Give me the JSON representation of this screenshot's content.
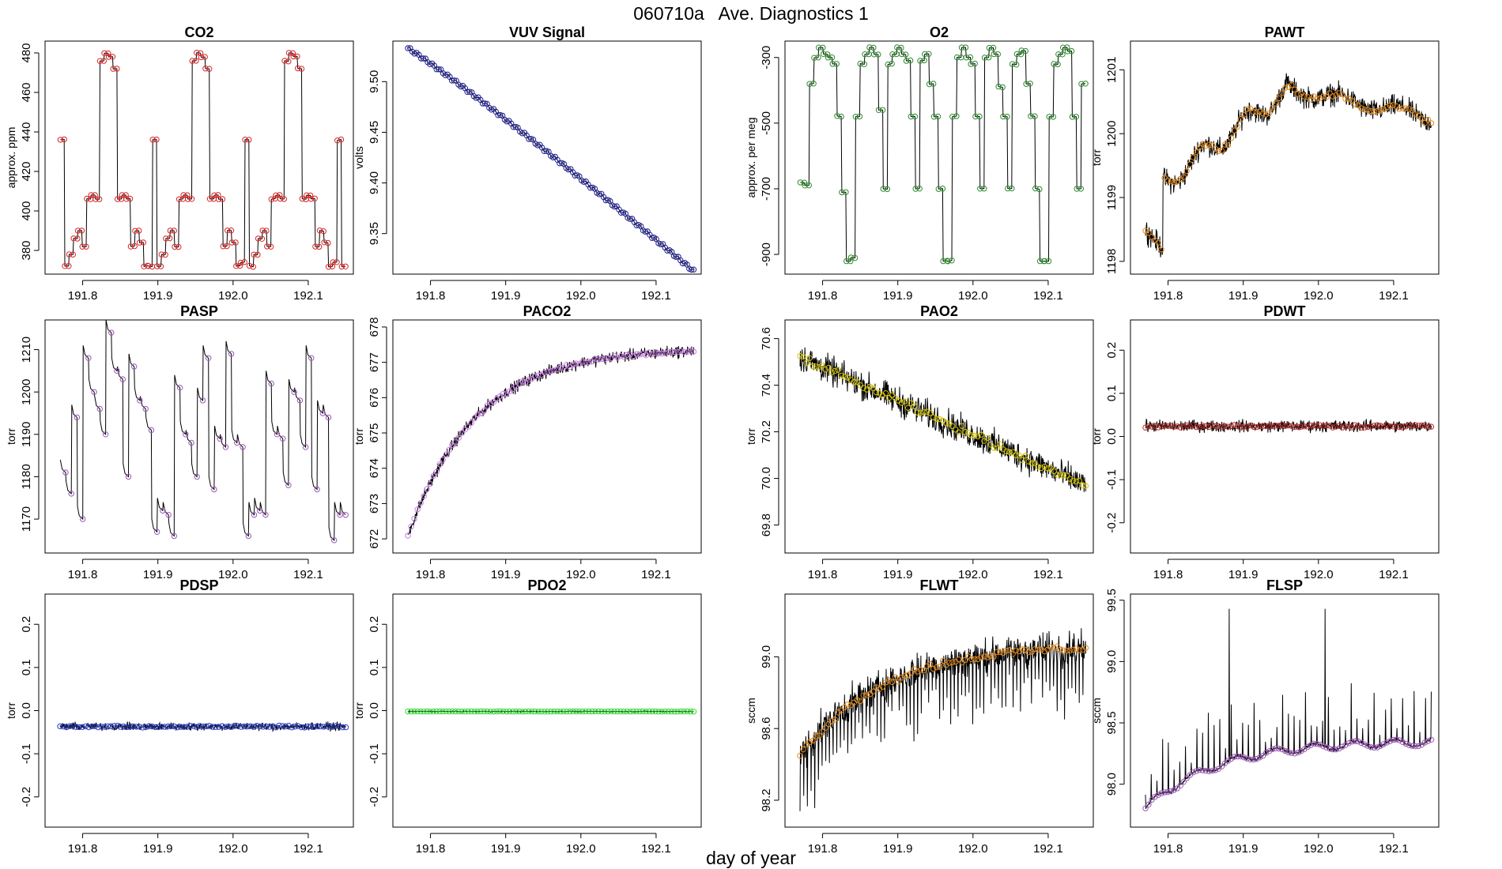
{
  "title": "060710a   Ave. Diagnostics 1",
  "xlabel": "day of year",
  "colors": {
    "axis": "#000000",
    "line": "#000000",
    "red": "#d62728",
    "navy": "#1f1f8f",
    "green": "#2e8b2e",
    "orange": "#e08a1e",
    "purple": "#9b59b6",
    "violet": "#c77ee0",
    "yellow": "#d4c400",
    "darkred": "#b03030",
    "blue": "#3040c0",
    "lime": "#33dd33"
  },
  "chart_data": [
    {
      "type": "line",
      "title": "CO2",
      "ylabel": "approx. ppm",
      "xlim": [
        191.75,
        192.16
      ],
      "ylim": [
        368,
        486
      ],
      "xticks": [
        191.8,
        191.9,
        192.0,
        192.1
      ],
      "xtick_labels": [
        "191.8",
        "191.9",
        "192.0",
        "192.1"
      ],
      "yticks": [
        380,
        400,
        420,
        440,
        460,
        480
      ],
      "ytick_labels": [
        "380",
        "400",
        "420",
        "440",
        "460",
        "480"
      ],
      "marker_color": "red",
      "pattern": "co2"
    },
    {
      "type": "line",
      "title": "VUV Signal",
      "ylabel": "volts",
      "xlim": [
        191.75,
        192.16
      ],
      "ylim": [
        9.31,
        9.54
      ],
      "xticks": [
        191.8,
        191.9,
        192.0,
        192.1
      ],
      "xtick_labels": [
        "191.8",
        "191.9",
        "192.0",
        "192.1"
      ],
      "yticks": [
        9.35,
        9.4,
        9.45,
        9.5
      ],
      "ytick_labels": [
        "9.35",
        "9.40",
        "9.45",
        "9.50"
      ],
      "marker_color": "navy",
      "pattern": "vuv"
    },
    {
      "type": "line",
      "title": "O2",
      "ylabel": "approx. per meg",
      "xlim": [
        191.75,
        192.16
      ],
      "ylim": [
        -960,
        -250
      ],
      "xticks": [
        191.8,
        191.9,
        192.0,
        192.1
      ],
      "xtick_labels": [
        "191.8",
        "191.9",
        "192.0",
        "192.1"
      ],
      "yticks": [
        -900,
        -700,
        -500,
        -300
      ],
      "ytick_labels": [
        "-900",
        "-700",
        "-500",
        "-300"
      ],
      "marker_color": "green",
      "pattern": "o2"
    },
    {
      "type": "line",
      "title": "PAWT",
      "ylabel": "torr",
      "xlim": [
        191.75,
        192.16
      ],
      "ylim": [
        1197.8,
        1201.45
      ],
      "xticks": [
        191.8,
        191.9,
        192.0,
        192.1
      ],
      "xtick_labels": [
        "191.8",
        "191.9",
        "192.0",
        "192.1"
      ],
      "yticks": [
        1198,
        1199,
        1200,
        1201
      ],
      "ytick_labels": [
        "1198",
        "1199",
        "1200",
        "1201"
      ],
      "marker_color": "orange",
      "pattern": "pawt"
    },
    {
      "type": "line",
      "title": "PASP",
      "ylabel": "torr",
      "xlim": [
        191.75,
        192.16
      ],
      "ylim": [
        1162,
        1217
      ],
      "xticks": [
        191.8,
        191.9,
        192.0,
        192.1
      ],
      "xtick_labels": [
        "191.8",
        "191.9",
        "192.0",
        "192.1"
      ],
      "yticks": [
        1170,
        1180,
        1190,
        1200,
        1210
      ],
      "ytick_labels": [
        "1170",
        "1180",
        "1190",
        "1200",
        "1210"
      ],
      "marker_color": "purple",
      "pattern": "pasp"
    },
    {
      "type": "line",
      "title": "PACO2",
      "ylabel": "torr",
      "xlim": [
        191.75,
        192.16
      ],
      "ylim": [
        671.6,
        678.2
      ],
      "xticks": [
        191.8,
        191.9,
        192.0,
        192.1
      ],
      "xtick_labels": [
        "191.8",
        "191.9",
        "192.0",
        "192.1"
      ],
      "yticks": [
        672,
        673,
        674,
        675,
        676,
        677,
        678
      ],
      "ytick_labels": [
        "672",
        "673",
        "674",
        "675",
        "676",
        "677",
        "678"
      ],
      "marker_color": "violet",
      "pattern": "paco2"
    },
    {
      "type": "line",
      "title": "PAO2",
      "ylabel": "torr",
      "xlim": [
        191.75,
        192.16
      ],
      "ylim": [
        69.68,
        70.68
      ],
      "xticks": [
        191.8,
        191.9,
        192.0,
        192.1
      ],
      "xtick_labels": [
        "191.8",
        "191.9",
        "192.0",
        "192.1"
      ],
      "yticks": [
        69.8,
        70.0,
        70.2,
        70.4,
        70.6
      ],
      "ytick_labels": [
        "69.8",
        "70.0",
        "70.2",
        "70.4",
        "70.6"
      ],
      "marker_color": "yellow",
      "pattern": "pao2"
    },
    {
      "type": "line",
      "title": "PDWT",
      "ylabel": "torr",
      "xlim": [
        191.75,
        192.16
      ],
      "ylim": [
        -0.27,
        0.27
      ],
      "xticks": [
        191.8,
        191.9,
        192.0,
        192.1
      ],
      "xtick_labels": [
        "191.8",
        "191.9",
        "192.0",
        "192.1"
      ],
      "yticks": [
        -0.2,
        -0.1,
        0.0,
        0.1,
        0.2
      ],
      "ytick_labels": [
        "-0.2",
        "-0.1",
        "0.0",
        "0.1",
        "0.2"
      ],
      "marker_color": "darkred",
      "pattern": "pdwt"
    },
    {
      "type": "line",
      "title": "PDSP",
      "ylabel": "torr",
      "xlim": [
        191.75,
        192.16
      ],
      "ylim": [
        -0.27,
        0.27
      ],
      "xticks": [
        191.8,
        191.9,
        192.0,
        192.1
      ],
      "xtick_labels": [
        "191.8",
        "191.9",
        "192.0",
        "192.1"
      ],
      "yticks": [
        -0.2,
        -0.1,
        0.0,
        0.1,
        0.2
      ],
      "ytick_labels": [
        "-0.2",
        "-0.1",
        "0.0",
        "0.1",
        "0.2"
      ],
      "marker_color": "blue",
      "pattern": "pdsp"
    },
    {
      "type": "line",
      "title": "PDO2",
      "ylabel": "torr",
      "xlim": [
        191.75,
        192.16
      ],
      "ylim": [
        -0.27,
        0.27
      ],
      "xticks": [
        191.8,
        191.9,
        192.0,
        192.1
      ],
      "xtick_labels": [
        "191.8",
        "191.9",
        "192.0",
        "192.1"
      ],
      "yticks": [
        -0.2,
        -0.1,
        0.0,
        0.1,
        0.2
      ],
      "ytick_labels": [
        "-0.2",
        "-0.1",
        "0.0",
        "0.1",
        "0.2"
      ],
      "marker_color": "lime",
      "pattern": "pdo2"
    },
    {
      "type": "line",
      "title": "FLWT",
      "ylabel": "sccm",
      "xlim": [
        191.75,
        192.16
      ],
      "ylim": [
        98.05,
        99.35
      ],
      "xticks": [
        191.8,
        191.9,
        192.0,
        192.1
      ],
      "xtick_labels": [
        "191.8",
        "191.9",
        "192.0",
        "192.1"
      ],
      "yticks": [
        98.2,
        98.6,
        99.0
      ],
      "ytick_labels": [
        "98.2",
        "98.6",
        "99.0"
      ],
      "marker_color": "orange",
      "pattern": "flwt"
    },
    {
      "type": "line",
      "title": "FLSP",
      "ylabel": "sccm",
      "xlim": [
        191.75,
        192.16
      ],
      "ylim": [
        97.65,
        99.55
      ],
      "xticks": [
        191.8,
        191.9,
        192.0,
        192.1
      ],
      "xtick_labels": [
        "191.8",
        "191.9",
        "192.0",
        "192.1"
      ],
      "yticks": [
        98.0,
        98.5,
        99.0,
        99.5
      ],
      "ytick_labels": [
        "98.0",
        "98.5",
        "99.0",
        "99.5"
      ],
      "marker_color": "purple",
      "pattern": "flsp"
    }
  ]
}
